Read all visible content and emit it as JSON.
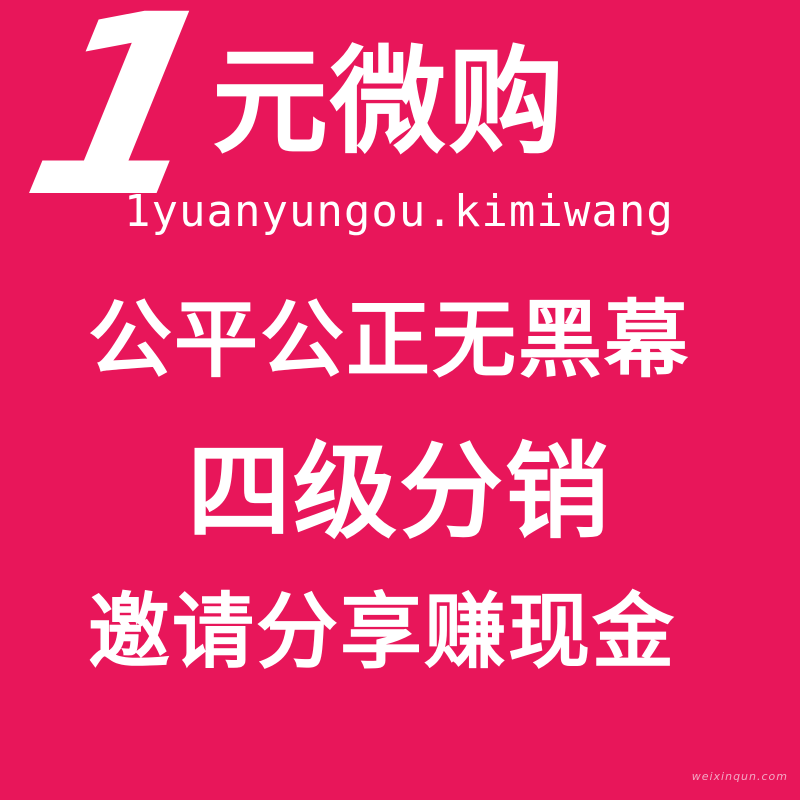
{
  "background_color": "#E8165A",
  "text_color": "#FFFFFF",
  "brand": {
    "number": "1",
    "title": "元微购",
    "domain": "1yuanyungou.kimiwang"
  },
  "slogans": [
    "公平公正无黑幕",
    "四级分销",
    "邀请分享赚现金"
  ],
  "watermark": "weixinqun.com"
}
